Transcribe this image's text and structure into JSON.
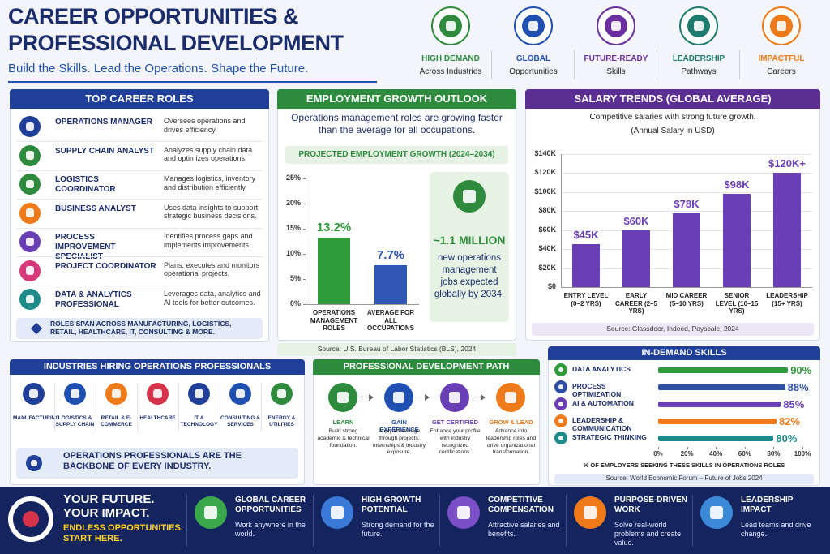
{
  "header": {
    "title_lines": [
      "CAREER OPPORTUNITIES &",
      "PROFESSIONAL DEVELOPMENT"
    ],
    "subtitle": "Build the Skills. Lead the Operations. Shape the Future."
  },
  "badges": [
    {
      "title": "HIGH DEMAND",
      "text": "Across Industries"
    },
    {
      "title": "GLOBAL",
      "text": "Opportunities"
    },
    {
      "title": "FUTURE-READY",
      "text": "Skills"
    },
    {
      "title": "LEADERSHIP",
      "text": "Pathways"
    },
    {
      "title": "IMPACTFUL",
      "text": "Careers"
    }
  ],
  "top_roles": {
    "title": "TOP CAREER ROLES",
    "roles": [
      {
        "name": "OPERATIONS MANAGER",
        "description": "Oversees operations and drives efficiency."
      },
      {
        "name": "SUPPLY CHAIN ANALYST",
        "description": "Analyzes supply chain data and optimizes operations."
      },
      {
        "name": "LOGISTICS COORDINATOR",
        "description": "Manages logistics, inventory and distribution efficiently."
      },
      {
        "name": "BUSINESS ANALYST",
        "description": "Uses data insights to support strategic business decisions."
      },
      {
        "name": "PROCESS IMPROVEMENT SPECIALIST",
        "description": "Identifies process gaps and implements improvements."
      },
      {
        "name": "PROJECT COORDINATOR",
        "description": "Plans, executes and monitors operational projects."
      },
      {
        "name": "DATA & ANALYTICS PROFESSIONAL",
        "description": "Leverages data, analytics and AI tools for better outcomes."
      }
    ],
    "note": "ROLES SPAN ACROSS MANUFACTURING, LOGISTICS, RETAIL, HEALTHCARE, IT, CONSULTING & MORE."
  },
  "employment_growth": {
    "title": "EMPLOYMENT GROWTH OUTLOOK",
    "intro": "Operations management roles are growing faster than the average for all occupations.",
    "stat": "~1.1 MILLION",
    "stat_text": "new operations management jobs expected globally by 2034.",
    "source": "Source: U.S. Bureau of Labor Statistics (BLS), 2024"
  },
  "salary_trends": {
    "title": "SALARY TRENDS (GLOBAL AVERAGE)",
    "source": "Source: Glassdoor, Indeed, Payscale, 2024"
  },
  "skills_panel": {
    "title": "IN-DEMAND SKILLS",
    "source": "Source: World Economic Forum – Future of Jobs 2024"
  },
  "industries": {
    "title": "INDUSTRIES HIRING OPERATIONS PROFESSIONALS",
    "items": [
      "MANUFACTURING",
      "LOGISTICS & SUPPLY CHAIN",
      "RETAIL & E-COMMERCE",
      "HEALTHCARE",
      "IT & TECHNOLOGY",
      "CONSULTING & SERVICES",
      "ENERGY & UTILITIES"
    ],
    "note": "OPERATIONS PROFESSIONALS ARE THE BACKBONE OF EVERY INDUSTRY."
  },
  "development_path": {
    "title": "PROFESSIONAL DEVELOPMENT PATH",
    "steps": [
      {
        "title": "LEARN",
        "text": "Build strong academic & technical foundation."
      },
      {
        "title": "GAIN EXPERIENCE",
        "text": "Apply knowledge through projects, internships & industry exposure."
      },
      {
        "title": "GET CERTIFIED",
        "text": "Enhance your profile with industry recognized certifications."
      },
      {
        "title": "GROW & LEAD",
        "text": "Advance into leadership roles and drive organizational transformation."
      }
    ]
  },
  "footer": {
    "slogan_lines": [
      "YOUR FUTURE.",
      "YOUR IMPACT."
    ],
    "tagline_lines": [
      "ENDLESS OPPORTUNITIES.",
      "START HERE."
    ],
    "items": [
      {
        "title": "GLOBAL CAREER OPPORTUNITIES",
        "text": "Work anywhere in the world."
      },
      {
        "title": "HIGH GROWTH POTENTIAL",
        "text": "Strong demand for the future."
      },
      {
        "title": "COMPETITIVE COMPENSATION",
        "text": "Attractive salaries and benefits."
      },
      {
        "title": "PURPOSE-DRIVEN WORK",
        "text": "Solve real-world problems and create value."
      },
      {
        "title": "LEADERSHIP IMPACT",
        "text": "Lead teams and drive change."
      }
    ]
  },
  "chart_data": [
    {
      "type": "bar",
      "title": "PROJECTED EMPLOYMENT GROWTH (2024–2034)",
      "categories": [
        "OPERATIONS MANAGEMENT ROLES",
        "AVERAGE FOR ALL OCCUPATIONS"
      ],
      "values": [
        13.2,
        7.7
      ],
      "value_labels": [
        "13.2%",
        "7.7%"
      ],
      "colors": [
        "#2e9b3a",
        "#2f55b5"
      ],
      "ylim": [
        0,
        25
      ],
      "yticks": [
        {
          "value": 0,
          "label": "0%"
        },
        {
          "value": 5,
          "label": "5%"
        },
        {
          "value": 10,
          "label": "10%"
        },
        {
          "value": 15,
          "label": "15%"
        },
        {
          "value": 20,
          "label": "20%"
        },
        {
          "value": 25,
          "label": "25%"
        }
      ],
      "grid": false
    },
    {
      "type": "bar",
      "subtitle": "Competitive salaries with strong future growth.",
      "y_label": "(Annual Salary in USD)",
      "categories": [
        "ENTRY LEVEL (0–2 YRS)",
        "EARLY CAREER (2–5 YRS)",
        "MID CAREER (5–10 YRS)",
        "SENIOR LEVEL (10–15 YRS)",
        "LEADERSHIP (15+ YRS)"
      ],
      "values": [
        45000,
        60000,
        78000,
        98000,
        120000
      ],
      "value_labels": [
        "$45K",
        "$60K",
        "$78K",
        "$98K",
        "$120K+"
      ],
      "colors": [
        "#6a3fb5",
        "#6a3fb5",
        "#6a3fb5",
        "#6a3fb5",
        "#6a3fb5"
      ],
      "ylim": [
        0,
        140000
      ],
      "yticks": [
        {
          "value": 0,
          "label": "$0"
        },
        {
          "value": 20000,
          "label": "$20K"
        },
        {
          "value": 40000,
          "label": "$40K"
        },
        {
          "value": 60000,
          "label": "$60K"
        },
        {
          "value": 80000,
          "label": "$80K"
        },
        {
          "value": 100000,
          "label": "$100K"
        },
        {
          "value": 120000,
          "label": "$120K"
        },
        {
          "value": 140000,
          "label": "$140K"
        }
      ],
      "grid": true
    },
    {
      "type": "bar",
      "orientation": "horizontal",
      "categories": [
        "DATA ANALYTICS",
        "PROCESS OPTIMIZATION",
        "AI & AUTOMATION",
        "LEADERSHIP & COMMUNICATION",
        "STRATEGIC THINKING"
      ],
      "values": [
        90,
        88,
        85,
        82,
        80
      ],
      "value_labels": [
        "90%",
        "88%",
        "85%",
        "82%",
        "80%"
      ],
      "colors": [
        "#2e9b3a",
        "#2f4fa5",
        "#6a3fb5",
        "#ef7a1a",
        "#1f8a8a"
      ],
      "xlim": [
        0,
        100
      ],
      "xticks": [
        {
          "value": 0,
          "label": "0%"
        },
        {
          "value": 20,
          "label": "20%"
        },
        {
          "value": 40,
          "label": "40%"
        },
        {
          "value": 60,
          "label": "60%"
        },
        {
          "value": 80,
          "label": "80%"
        },
        {
          "value": 100,
          "label": "100%"
        }
      ],
      "x_label": "% OF EMPLOYERS SEEKING THESE SKILLS IN OPERATIONS ROLES",
      "grid": false
    }
  ]
}
